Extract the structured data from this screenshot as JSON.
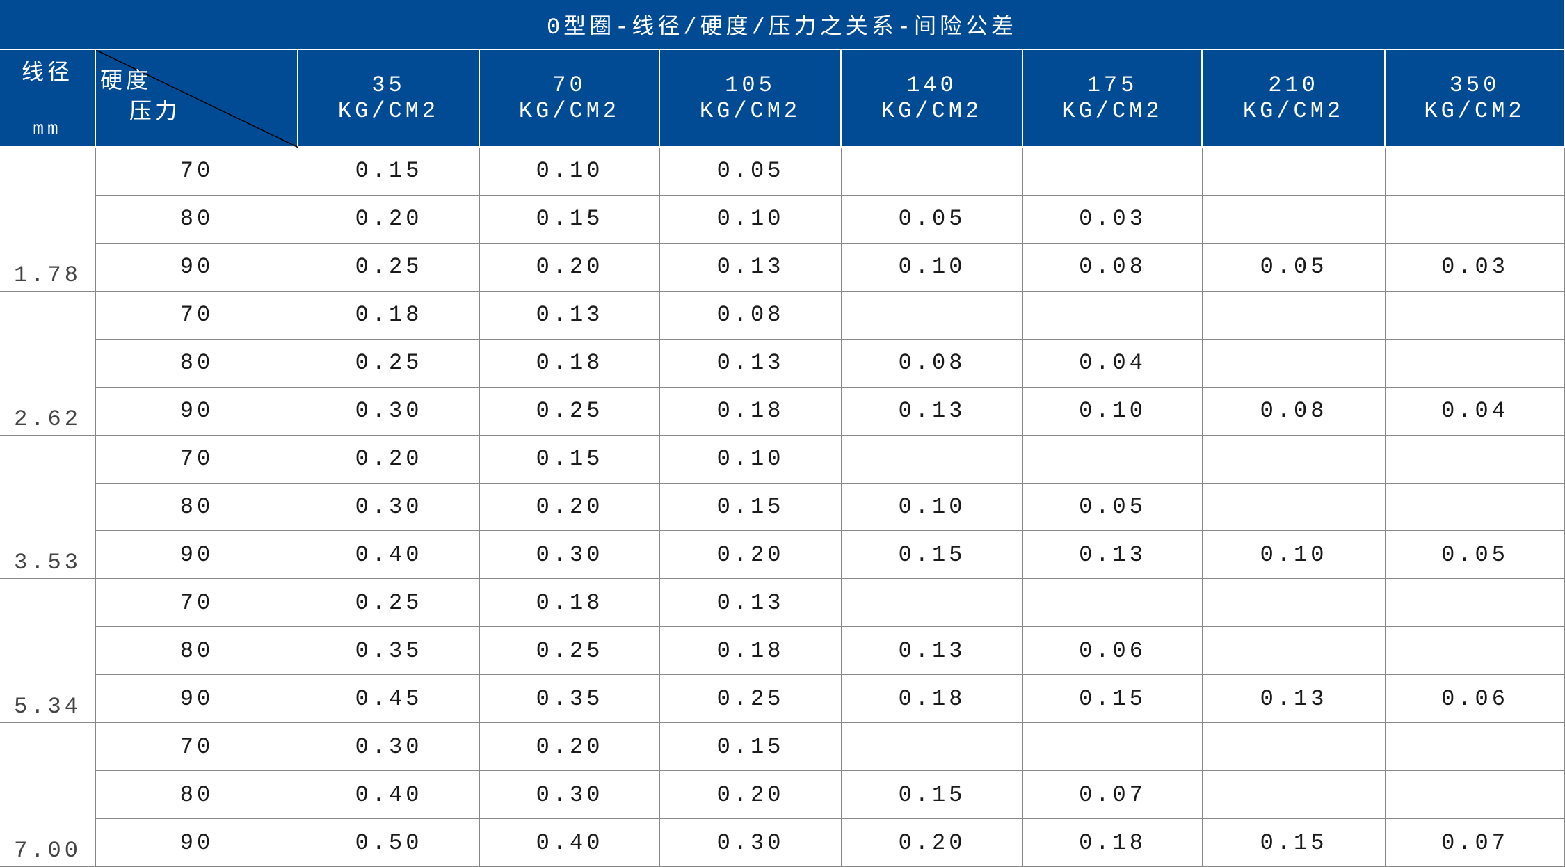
{
  "title": "0型圈-线径/硬度/压力之关系-间险公差",
  "header": {
    "diameter": "线径",
    "diameter_unit": "mm",
    "hardness": "硬度",
    "pressure": "压力",
    "pressures": [
      {
        "value": "35",
        "unit": "KG/CM2"
      },
      {
        "value": "70",
        "unit": "KG/CM2"
      },
      {
        "value": "105",
        "unit": "KG/CM2"
      },
      {
        "value": "140",
        "unit": "KG/CM2"
      },
      {
        "value": "175",
        "unit": "KG/CM2"
      },
      {
        "value": "210",
        "unit": "KG/CM2"
      },
      {
        "value": "350",
        "unit": "KG/CM2"
      }
    ]
  },
  "groups": [
    {
      "diameter": "1.78",
      "rows": [
        {
          "hardness": "70",
          "values": [
            "0.15",
            "0.10",
            "0.05"
          ]
        },
        {
          "hardness": "80",
          "values": [
            "0.20",
            "0.15",
            "0.10",
            "0.05",
            "0.03"
          ]
        },
        {
          "hardness": "90",
          "values": [
            "0.25",
            "0.20",
            "0.13",
            "0.10",
            "0.08",
            "0.05",
            "0.03"
          ]
        }
      ]
    },
    {
      "diameter": "2.62",
      "rows": [
        {
          "hardness": "70",
          "values": [
            "0.18",
            "0.13",
            "0.08"
          ]
        },
        {
          "hardness": "80",
          "values": [
            "0.25",
            "0.18",
            "0.13",
            "0.08",
            "0.04"
          ]
        },
        {
          "hardness": "90",
          "values": [
            "0.30",
            "0.25",
            "0.18",
            "0.13",
            "0.10",
            "0.08",
            "0.04"
          ]
        }
      ]
    },
    {
      "diameter": "3.53",
      "rows": [
        {
          "hardness": "70",
          "values": [
            "0.20",
            "0.15",
            "0.10"
          ]
        },
        {
          "hardness": "80",
          "values": [
            "0.30",
            "0.20",
            "0.15",
            "0.10",
            "0.05"
          ]
        },
        {
          "hardness": "90",
          "values": [
            "0.40",
            "0.30",
            "0.20",
            "0.15",
            "0.13",
            "0.10",
            "0.05"
          ]
        }
      ]
    },
    {
      "diameter": "5.34",
      "rows": [
        {
          "hardness": "70",
          "values": [
            "0.25",
            "0.18",
            "0.13"
          ]
        },
        {
          "hardness": "80",
          "values": [
            "0.35",
            "0.25",
            "0.18",
            "0.13",
            "0.06"
          ]
        },
        {
          "hardness": "90",
          "values": [
            "0.45",
            "0.35",
            "0.25",
            "0.18",
            "0.15",
            "0.13",
            "0.06"
          ]
        }
      ]
    },
    {
      "diameter": "7.00",
      "rows": [
        {
          "hardness": "70",
          "values": [
            "0.30",
            "0.20",
            "0.15"
          ]
        },
        {
          "hardness": "80",
          "values": [
            "0.40",
            "0.30",
            "0.20",
            "0.15",
            "0.07"
          ]
        },
        {
          "hardness": "90",
          "values": [
            "0.50",
            "0.40",
            "0.30",
            "0.20",
            "0.18",
            "0.15",
            "0.07"
          ]
        }
      ]
    }
  ]
}
